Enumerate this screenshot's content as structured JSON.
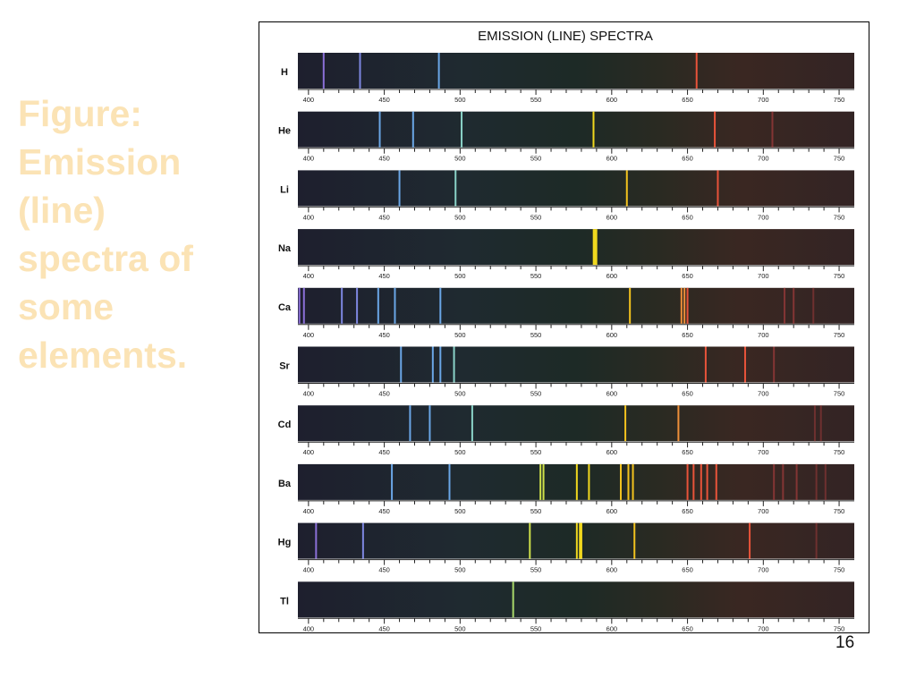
{
  "slide": {
    "title_lines": [
      "Figure:",
      "Emission",
      "(line)",
      "spectra of",
      "some",
      "elements."
    ],
    "page_number": "16"
  },
  "chart_data": {
    "type": "line-spectra",
    "title": "EMISSION (LINE) SPECTRA",
    "x_range": [
      393,
      760
    ],
    "x_ticks": [
      400,
      450,
      500,
      550,
      600,
      650,
      700,
      750
    ],
    "x_minor_step": 10,
    "elements": [
      {
        "symbol": "H",
        "lines": [
          410,
          434,
          486,
          656
        ]
      },
      {
        "symbol": "He",
        "lines": [
          447,
          469,
          501,
          588,
          668,
          706
        ]
      },
      {
        "symbol": "Li",
        "lines": [
          460,
          497,
          610,
          670
        ]
      },
      {
        "symbol": "Na",
        "lines": [
          589
        ]
      },
      {
        "symbol": "Ca",
        "lines": [
          394,
          397,
          422,
          432,
          446,
          457,
          487,
          612,
          646,
          648,
          650,
          714,
          720,
          733
        ]
      },
      {
        "symbol": "Sr",
        "lines": [
          461,
          482,
          487,
          496,
          662,
          688,
          707
        ]
      },
      {
        "symbol": "Cd",
        "lines": [
          467,
          480,
          508,
          609,
          644,
          734,
          738
        ]
      },
      {
        "symbol": "Ba",
        "lines": [
          455,
          493,
          553,
          555,
          577,
          585,
          606,
          611,
          614,
          650,
          654,
          659,
          663,
          669,
          707,
          713,
          722,
          735,
          741
        ]
      },
      {
        "symbol": "Hg",
        "lines": [
          405,
          436,
          546,
          577,
          579,
          580,
          615,
          691,
          735
        ]
      },
      {
        "symbol": "Tl",
        "lines": [
          535
        ]
      }
    ]
  }
}
